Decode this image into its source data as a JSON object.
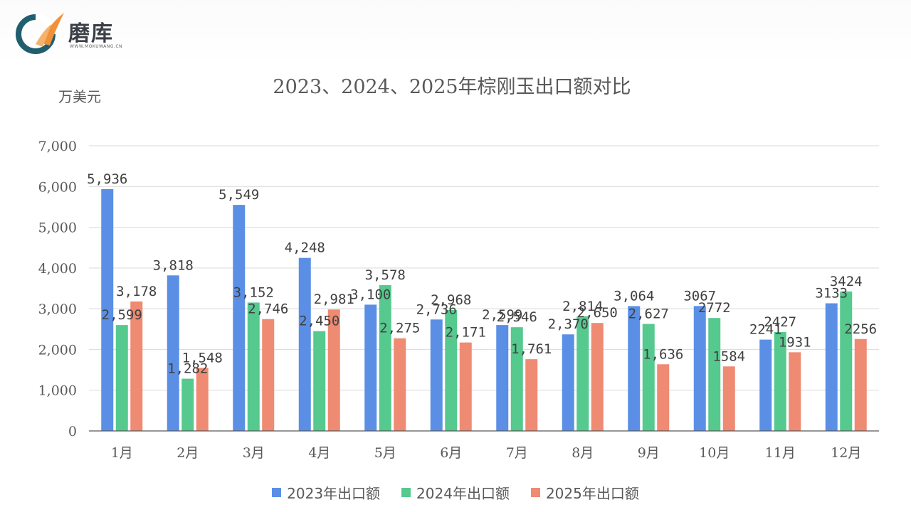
{
  "brand": {
    "name": "磨库",
    "subtitle": "WWW.MOKUWANG.CN",
    "colors": {
      "teal": "#1f5e6e",
      "orange": "#f0913a"
    }
  },
  "chart_data": {
    "type": "bar",
    "title": "2023、2024、2025年棕刚玉出口额对比",
    "ylabel": "万美元",
    "xlabel": "",
    "ylim": [
      0,
      7000
    ],
    "yticks": [
      {
        "value": 0,
        "label": "0"
      },
      {
        "value": 1000,
        "label": "1,000"
      },
      {
        "value": 2000,
        "label": "2,000"
      },
      {
        "value": 3000,
        "label": "3,000"
      },
      {
        "value": 4000,
        "label": "4,000"
      },
      {
        "value": 5000,
        "label": "5,000"
      },
      {
        "value": 6000,
        "label": "6,000"
      },
      {
        "value": 7000,
        "label": "7,000"
      }
    ],
    "grid": true,
    "legend_position": "bottom",
    "categories": [
      "1月",
      "2月",
      "3月",
      "4月",
      "5月",
      "6月",
      "7月",
      "8月",
      "9月",
      "10月",
      "11月",
      "12月"
    ],
    "series": [
      {
        "name": "2023年出口额",
        "color": "#5b8fe6",
        "values": [
          5936,
          3818,
          5549,
          4248,
          3100,
          2736,
          2599,
          2370,
          3064,
          3067,
          2241,
          3133
        ],
        "labels": [
          "5,936",
          "3,818",
          "5,549",
          "4,248",
          "3,100",
          "2,736",
          "2,599",
          "2,370",
          "3,064",
          "3067",
          "2241",
          "3133"
        ]
      },
      {
        "name": "2024年出口额",
        "color": "#55c98e",
        "values": [
          2599,
          1282,
          3152,
          2450,
          3578,
          2968,
          2546,
          2814,
          2627,
          2772,
          2427,
          3424
        ],
        "labels": [
          "2,599",
          "1,282",
          "3,152",
          "2,450",
          "3,578",
          "2,968",
          "2,546",
          "2,814",
          "2,627",
          "2772",
          "2427",
          "3424"
        ]
      },
      {
        "name": "2025年出口额",
        "color": "#ef8a73",
        "values": [
          3178,
          1548,
          2746,
          2981,
          2275,
          2171,
          1761,
          2650,
          1636,
          1584,
          1931,
          2256
        ],
        "labels": [
          "3,178",
          "1,548",
          "2,746",
          "2,981",
          "2,275",
          "2,171",
          "1,761",
          "2,650",
          "1,636",
          "1584",
          "1931",
          "2256"
        ]
      }
    ]
  }
}
